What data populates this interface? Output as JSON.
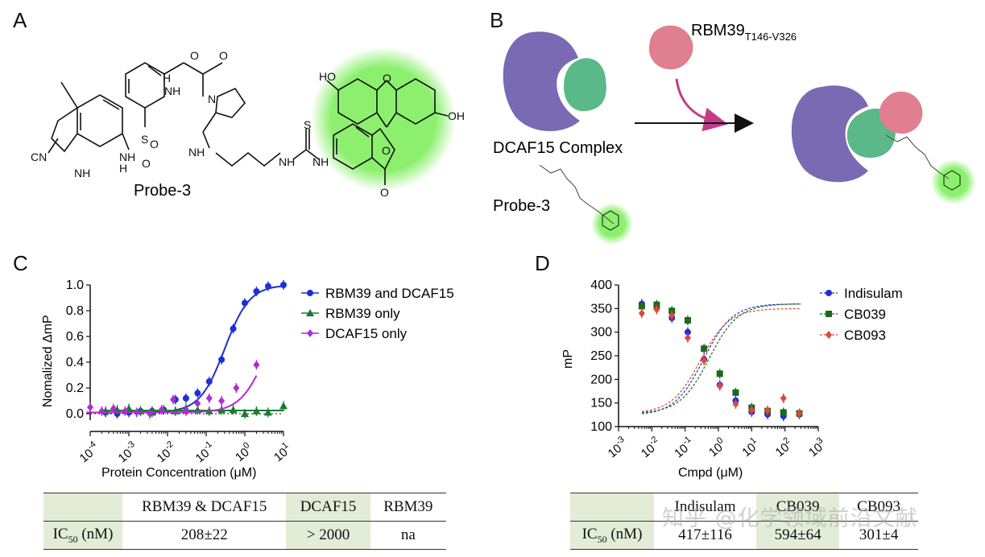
{
  "panels": {
    "a": {
      "letter": "A",
      "probe_label": "Probe-3",
      "atoms": {
        "ho": "HO",
        "oh": "OH",
        "o_ring": "O",
        "o_lactone": "O",
        "o_carbonyl": "O",
        "o_amide1": "O",
        "o_amide2": "O",
        "nh1": "NH",
        "nh2": "NH",
        "nh3": "NH",
        "nh4": "NH",
        "nh5": "NH",
        "n1": "N",
        "h1": "H",
        "h2": "H",
        "s_thio": "S",
        "s_sulfonyl": "S",
        "o_s1": "O",
        "o_s2": "O",
        "cn": "CN",
        "n_indole": "NH"
      }
    },
    "b": {
      "letter": "B",
      "rbm_label": "RBM39",
      "rbm_sub": "T146-V326",
      "complex_label": "DCAF15 Complex",
      "probe_label": "Probe-3"
    },
    "c": {
      "letter": "C"
    },
    "d": {
      "letter": "D"
    }
  },
  "colors": {
    "purple": "#7a69b3",
    "green_protein": "#5bb888",
    "pink": "#e07f8f",
    "glow": "#8cf06e",
    "arrow": "#c33a8a"
  },
  "chart_data": [
    {
      "type": "scatter",
      "xlabel": "Protein Concentration (μM)",
      "ylabel": "Nomalized ΔmP",
      "x_scale": "log",
      "xlim": [
        0.0001,
        10
      ],
      "ylim": [
        -0.05,
        1.0
      ],
      "xtick_labels": [
        "10",
        "10",
        "10",
        "10",
        "10",
        "10"
      ],
      "xtick_exponents": [
        "-4",
        "-3",
        "-2",
        "-1",
        "0",
        "1"
      ],
      "ytick_labels": [
        "0.0",
        "0.2",
        "0.4",
        "0.6",
        "0.8",
        "1.0"
      ],
      "legend_position": "top-right",
      "series": [
        {
          "name": "RBM39 and DCAF15",
          "color": "#1f2fd6",
          "marker": "circle",
          "x": [
            0.00025,
            0.0005,
            0.001,
            0.002,
            0.004,
            0.008,
            0.016,
            0.03,
            0.06,
            0.12,
            0.25,
            0.5,
            1.0,
            2.0,
            4.0,
            10.0
          ],
          "y": [
            0.01,
            0.0,
            0.01,
            0.02,
            0.02,
            0.03,
            0.11,
            0.12,
            0.16,
            0.25,
            0.42,
            0.66,
            0.86,
            0.95,
            0.99,
            1.0
          ]
        },
        {
          "name": "RBM39 only",
          "color": "#1a7a2e",
          "marker": "triangle",
          "x": [
            0.00025,
            0.0005,
            0.001,
            0.002,
            0.004,
            0.008,
            0.016,
            0.03,
            0.06,
            0.12,
            0.25,
            0.5,
            1.0,
            2.0,
            4.0,
            10.0
          ],
          "y": [
            0.02,
            0.03,
            0.04,
            0.02,
            0.01,
            0.03,
            0.02,
            0.04,
            0.03,
            0.02,
            0.03,
            0.03,
            0.0,
            0.02,
            0.01,
            0.06
          ]
        },
        {
          "name": "DCAF15 only",
          "color": "#b02ad6",
          "marker": "diamond",
          "x": [
            0.0001,
            0.0002,
            0.0004,
            0.0008,
            0.0016,
            0.0035,
            0.007,
            0.014,
            0.03,
            0.06,
            0.12,
            0.25,
            0.6,
            2.0
          ],
          "y": [
            0.05,
            0.02,
            0.04,
            0.02,
            0.01,
            0.0,
            0.03,
            0.11,
            0.02,
            0.08,
            0.12,
            0.1,
            0.2,
            0.38
          ]
        }
      ]
    },
    {
      "type": "scatter",
      "xlabel": "Cmpd (μM)",
      "ylabel": "mP",
      "x_scale": "log",
      "xlim": [
        0.001,
        1000
      ],
      "ylim": [
        100,
        400
      ],
      "xtick_labels": [
        "10",
        "10",
        "10",
        "10",
        "10",
        "10",
        "10"
      ],
      "xtick_exponents": [
        "-3",
        "-2",
        "-1",
        "0",
        "1",
        "2",
        "3"
      ],
      "ytick_labels": [
        "100",
        "150",
        "200",
        "250",
        "300",
        "350",
        "400"
      ],
      "legend_position": "top-right",
      "series": [
        {
          "name": "Indisulam",
          "color": "#1f2fd6",
          "marker": "circle",
          "x": [
            0.005,
            0.014,
            0.04,
            0.12,
            0.37,
            1.1,
            3.3,
            10,
            30,
            90,
            270
          ],
          "y": [
            360,
            352,
            330,
            300,
            242,
            188,
            155,
            131,
            126,
            122,
            126
          ]
        },
        {
          "name": "CB039",
          "color": "#1a6a1e",
          "marker": "square",
          "x": [
            0.005,
            0.014,
            0.04,
            0.12,
            0.37,
            1.1,
            3.3,
            10,
            30,
            90,
            270
          ],
          "y": [
            355,
            358,
            345,
            325,
            265,
            212,
            172,
            140,
            133,
            130,
            128
          ]
        },
        {
          "name": "CB093",
          "color": "#e0463c",
          "marker": "diamond",
          "x": [
            0.005,
            0.014,
            0.04,
            0.12,
            0.37,
            1.1,
            3.3,
            10,
            30,
            90,
            270
          ],
          "y": [
            340,
            348,
            335,
            288,
            240,
            186,
            148,
            135,
            134,
            160,
            128
          ]
        }
      ]
    }
  ],
  "tables": {
    "c": {
      "headers": [
        "",
        "RBM39 & DCAF15",
        "DCAF15",
        "RBM39"
      ],
      "row_label": "IC",
      "row_label_sub": "50",
      "row_label_unit": " (nM)",
      "values": [
        "208±22",
        "> 2000",
        "na"
      ]
    },
    "d": {
      "headers": [
        "",
        "Indisulam",
        "CB039",
        "CB093"
      ],
      "row_label": "IC",
      "row_label_sub": "50",
      "row_label_unit": " (nM)",
      "values": [
        "417±116",
        "594±64",
        "301±4"
      ]
    }
  },
  "watermark": "知乎 @化学领域前沿文献"
}
